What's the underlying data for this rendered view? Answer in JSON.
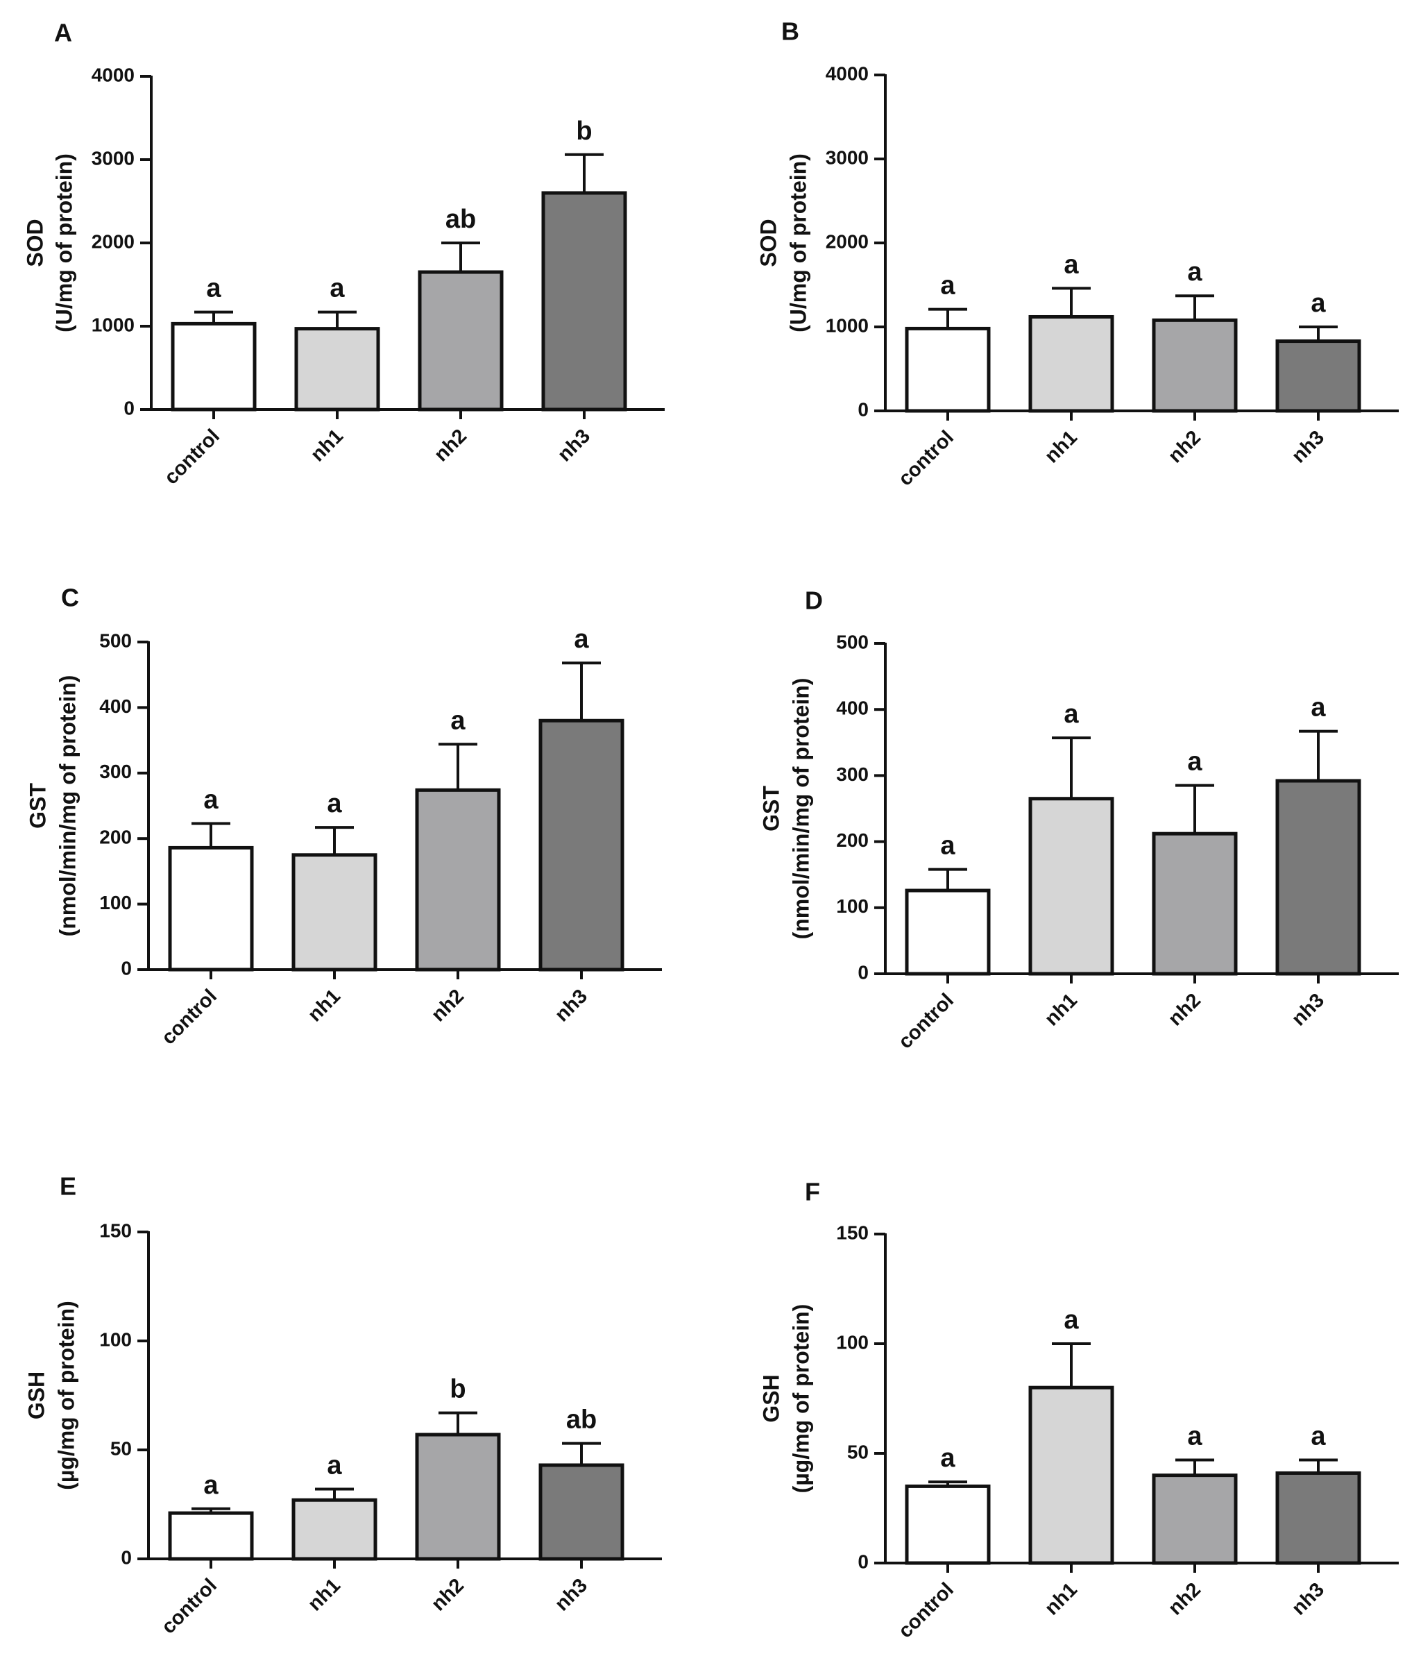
{
  "chart_data": [
    {
      "panel": "A",
      "type": "bar",
      "categories": [
        "control",
        "nh1",
        "nh2",
        "nh3"
      ],
      "values": [
        1030,
        970,
        1650,
        2600
      ],
      "errors": [
        140,
        200,
        350,
        460
      ],
      "significance": [
        "a",
        "a",
        "ab",
        "b"
      ],
      "colors": [
        "#ffffff",
        "#d6d6d6",
        "#a6a6a8",
        "#7a7a7a"
      ],
      "ylabel_line1": "SOD",
      "ylabel_line2": "(U/mg of protein)",
      "ylim": [
        0,
        4000
      ],
      "yticks": [
        0,
        1000,
        2000,
        3000,
        4000
      ]
    },
    {
      "panel": "B",
      "type": "bar",
      "categories": [
        "control",
        "nh1",
        "nh2",
        "nh3"
      ],
      "values": [
        980,
        1120,
        1080,
        830
      ],
      "errors": [
        230,
        340,
        290,
        170
      ],
      "significance": [
        "a",
        "a",
        "a",
        "a"
      ],
      "colors": [
        "#ffffff",
        "#d6d6d6",
        "#a6a6a8",
        "#7a7a7a"
      ],
      "ylabel_line1": "SOD",
      "ylabel_line2": "(U/mg of protein)",
      "ylim": [
        0,
        4000
      ],
      "yticks": [
        0,
        1000,
        2000,
        3000,
        4000
      ]
    },
    {
      "panel": "C",
      "type": "bar",
      "categories": [
        "control",
        "nh1",
        "nh2",
        "nh3"
      ],
      "values": [
        186,
        175,
        274,
        380
      ],
      "errors": [
        37,
        42,
        70,
        88
      ],
      "significance": [
        "a",
        "a",
        "a",
        "a"
      ],
      "colors": [
        "#ffffff",
        "#d6d6d6",
        "#a6a6a8",
        "#7a7a7a"
      ],
      "ylabel_line1": "GST",
      "ylabel_line2": "(nmol/min/mg of protein)",
      "ylim": [
        0,
        500
      ],
      "yticks": [
        0,
        100,
        200,
        300,
        400,
        500
      ]
    },
    {
      "panel": "D",
      "type": "bar",
      "categories": [
        "control",
        "nh1",
        "nh2",
        "nh3"
      ],
      "values": [
        126,
        265,
        212,
        292
      ],
      "errors": [
        32,
        92,
        73,
        75
      ],
      "significance": [
        "a",
        "a",
        "a",
        "a"
      ],
      "colors": [
        "#ffffff",
        "#d6d6d6",
        "#a6a6a8",
        "#7a7a7a"
      ],
      "ylabel_line1": "GST",
      "ylabel_line2": "(nmol/min/mg of protein)",
      "ylim": [
        0,
        500
      ],
      "yticks": [
        0,
        100,
        200,
        300,
        400,
        500
      ]
    },
    {
      "panel": "E",
      "type": "bar",
      "categories": [
        "control",
        "nh1",
        "nh2",
        "nh3"
      ],
      "values": [
        21,
        27,
        57,
        43
      ],
      "errors": [
        2,
        5,
        10,
        10
      ],
      "significance": [
        "a",
        "a",
        "b",
        "ab"
      ],
      "colors": [
        "#ffffff",
        "#d6d6d6",
        "#a6a6a8",
        "#7a7a7a"
      ],
      "ylabel_line1": "GSH",
      "ylabel_line2": "(µg/mg of protein)",
      "ylim": [
        0,
        150
      ],
      "yticks": [
        0,
        50,
        100,
        150
      ]
    },
    {
      "panel": "F",
      "type": "bar",
      "categories": [
        "control",
        "nh1",
        "nh2",
        "nh3"
      ],
      "values": [
        35,
        80,
        40,
        41
      ],
      "errors": [
        2,
        20,
        7,
        6
      ],
      "significance": [
        "a",
        "a",
        "a",
        "a"
      ],
      "colors": [
        "#ffffff",
        "#d6d6d6",
        "#a6a6a8",
        "#7a7a7a"
      ],
      "ylabel_line1": "GSH",
      "ylabel_line2": "(µg/mg of protein)",
      "ylim": [
        0,
        150
      ],
      "yticks": [
        0,
        50,
        100,
        150
      ]
    }
  ]
}
